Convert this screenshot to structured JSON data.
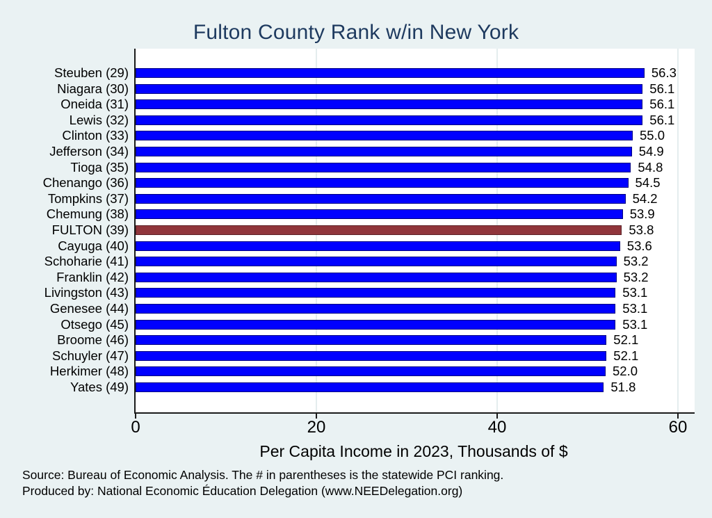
{
  "header": {
    "title": "Fulton County Rank w/in New York"
  },
  "colors": {
    "page_background": "#eaf2f3",
    "plot_background": "#ffffff",
    "title_color": "#1e3a5f",
    "axis_color": "#1a1a1a",
    "grid_color": "#e4edee",
    "bar_fill": "#0000ff",
    "bar_border": "#000080",
    "highlight_fill": "#90353b",
    "highlight_border": "#5d2328",
    "text_color": "#000000"
  },
  "chart_data": {
    "type": "bar",
    "orientation": "horizontal",
    "title": "Fulton County Rank w/in New York",
    "categories": [
      "Steuben (29)",
      "Niagara (30)",
      "Oneida (31)",
      "Lewis (32)",
      "Clinton (33)",
      "Jefferson (34)",
      "Tioga (35)",
      "Chenango (36)",
      "Tompkins (37)",
      "Chemung (38)",
      "FULTON (39)",
      "Cayuga (40)",
      "Schoharie (41)",
      "Franklin (42)",
      "Livingston (43)",
      "Genesee (44)",
      "Otsego (45)",
      "Broome (46)",
      "Schuyler (47)",
      "Herkimer (48)",
      "Yates (49)"
    ],
    "values": [
      56.3,
      56.1,
      56.1,
      56.1,
      55.0,
      54.9,
      54.8,
      54.5,
      54.2,
      53.9,
      53.8,
      53.6,
      53.2,
      53.2,
      53.1,
      53.1,
      53.1,
      52.1,
      52.1,
      52.0,
      51.8
    ],
    "highlight": {
      "category": "FULTON (39)",
      "index": 10,
      "value": 53.8
    },
    "xlabel": "Per Capita Income in 2023, Thousands of $",
    "xticks": [
      0,
      20,
      40,
      60
    ],
    "xlim": [
      0,
      61.8
    ],
    "grid": "vertical-light",
    "legend": "none",
    "value_labels_decimals": 1
  },
  "footer": {
    "line1": "Source: Bureau of Economic Analysis. The # in parentheses is the statewide PCI ranking.",
    "line2": "Produced by: National Economic Éducation Delegation (www.NEEDelegation.org)"
  }
}
